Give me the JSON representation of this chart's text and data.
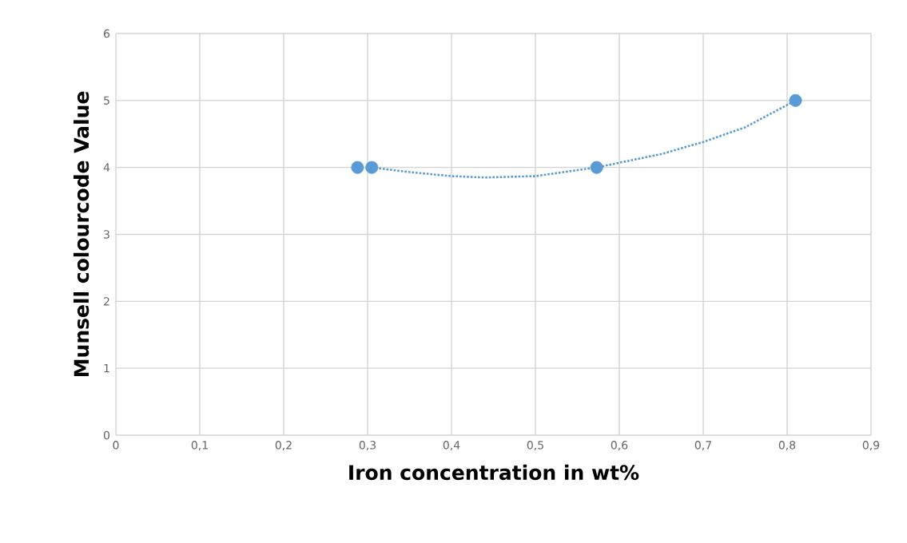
{
  "chart_data": {
    "type": "scatter",
    "xlabel": "Iron concentration in wt%",
    "ylabel": "Munsell colourcode Value",
    "xlim": [
      0,
      0.9
    ],
    "ylim": [
      0,
      6
    ],
    "xticks": [
      0,
      {
        "value": 0.1,
        "label": "0,1"
      },
      {
        "value": 0.2,
        "label": "0,2"
      },
      {
        "value": 0.3,
        "label": "0,3"
      },
      {
        "value": 0.4,
        "label": "0,4"
      },
      {
        "value": 0.5,
        "label": "0,5"
      },
      {
        "value": 0.6,
        "label": "0,6"
      },
      {
        "value": 0.7,
        "label": "0,7"
      },
      {
        "value": 0.8,
        "label": "0,8"
      },
      {
        "value": 0.9,
        "label": "0,9"
      }
    ],
    "yticks": [
      0,
      1,
      2,
      3,
      4,
      5,
      6
    ],
    "grid": true,
    "series": [
      {
        "color": "#5b9bd5",
        "marker": "circle",
        "x": [
          0.288,
          0.305,
          0.573,
          0.81
        ],
        "values": [
          4,
          4,
          4,
          5
        ]
      },
      {
        "type": "line",
        "color": "#5b9bd5",
        "marker": "none",
        "line_style": "dotted",
        "x": [
          0.305,
          0.35,
          0.4,
          0.44,
          0.5,
          0.573,
          0.65,
          0.7,
          0.75,
          0.81
        ],
        "values": [
          4.0,
          3.93,
          3.87,
          3.85,
          3.87,
          4.0,
          4.2,
          4.38,
          4.6,
          5.0
        ]
      }
    ]
  }
}
